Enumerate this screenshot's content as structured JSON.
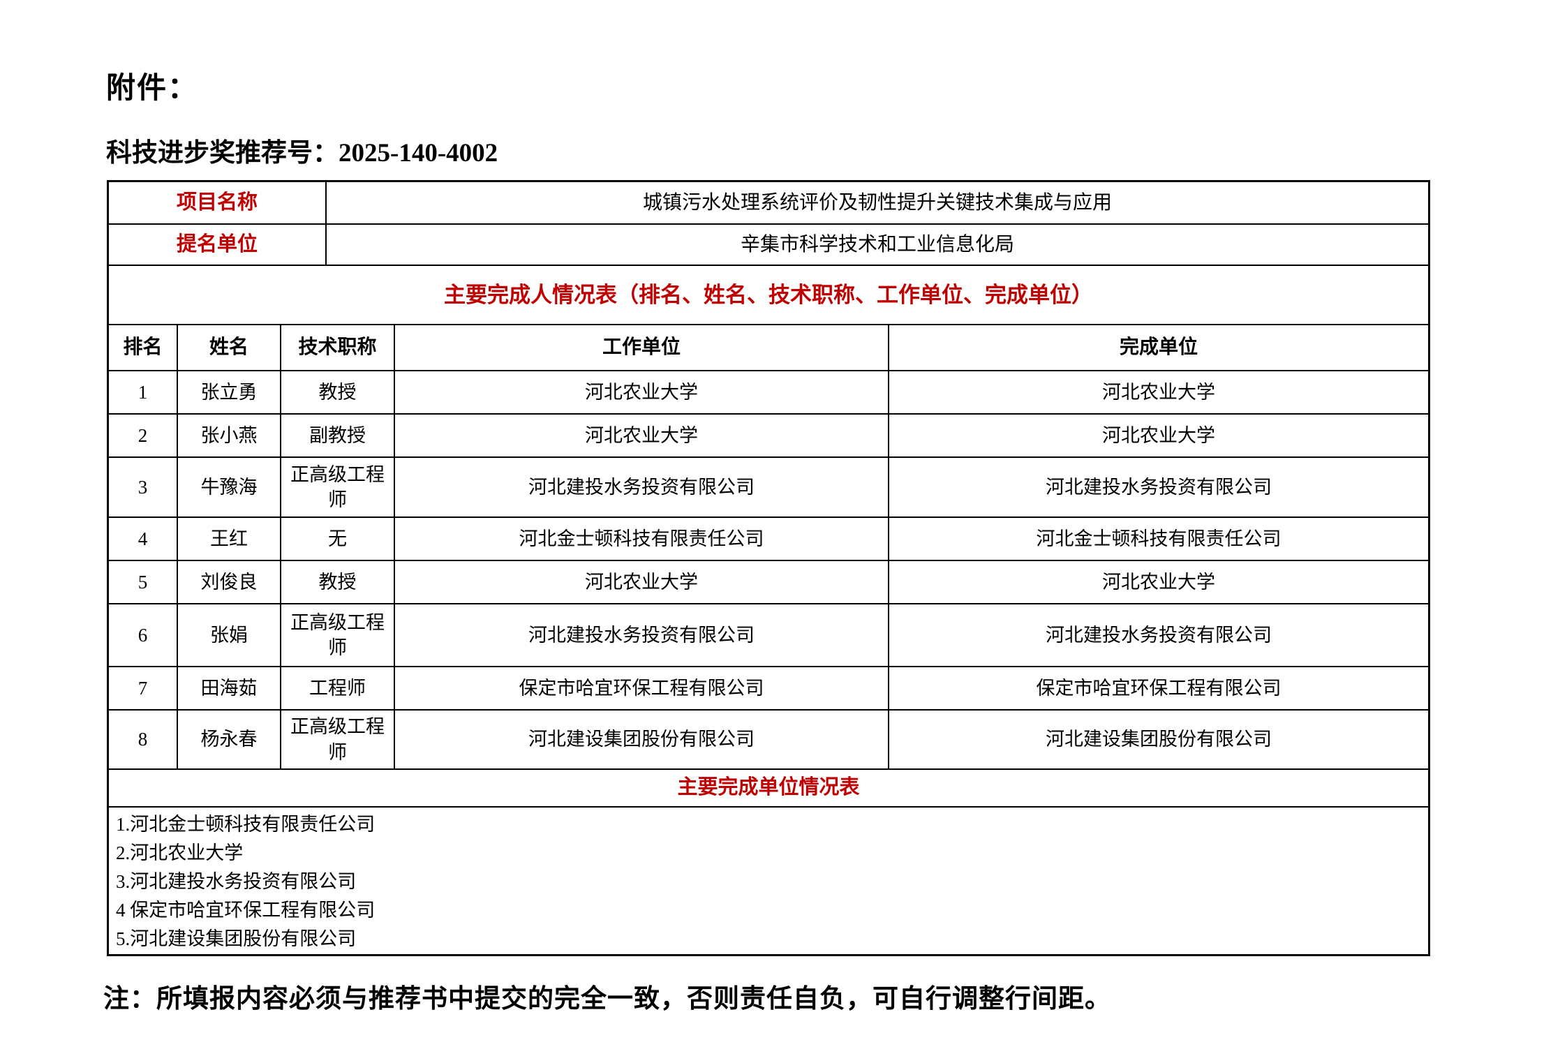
{
  "page": {
    "attachment_label": "附件：",
    "recommendation_label": "科技进步奖推荐号：",
    "recommendation_number": "2025-140-4002",
    "note": "注：所填报内容必须与推荐书中提交的完全一致，否则责任自负，可自行调整行间距。"
  },
  "info": {
    "project_name_label": "项目名称",
    "project_name_value": "城镇污水处理系统评价及韧性提升关键技术集成与应用",
    "nominator_label": "提名单位",
    "nominator_value": "辛集市科学技术和工业信息化局"
  },
  "completers_table": {
    "title": "主要完成人情况表（排名、姓名、技术职称、工作单位、完成单位）",
    "headers": {
      "rank": "排名",
      "name": "姓名",
      "title": "技术职称",
      "work_unit": "工作单位",
      "completion_unit": "完成单位"
    },
    "rows": [
      {
        "rank": "1",
        "name": "张立勇",
        "title": "教授",
        "work_unit": "河北农业大学",
        "completion_unit": "河北农业大学"
      },
      {
        "rank": "2",
        "name": "张小燕",
        "title": "副教授",
        "work_unit": "河北农业大学",
        "completion_unit": "河北农业大学"
      },
      {
        "rank": "3",
        "name": "牛豫海",
        "title": "正高级工程师",
        "work_unit": "河北建投水务投资有限公司",
        "completion_unit": "河北建投水务投资有限公司"
      },
      {
        "rank": "4",
        "name": "王红",
        "title": "无",
        "work_unit": "河北金士顿科技有限责任公司",
        "completion_unit": "河北金士顿科技有限责任公司"
      },
      {
        "rank": "5",
        "name": "刘俊良",
        "title": "教授",
        "work_unit": "河北农业大学",
        "completion_unit": "河北农业大学"
      },
      {
        "rank": "6",
        "name": "张娟",
        "title": "正高级工程师",
        "work_unit": "河北建投水务投资有限公司",
        "completion_unit": "河北建投水务投资有限公司"
      },
      {
        "rank": "7",
        "name": "田海茹",
        "title": "工程师",
        "work_unit": "保定市哈宜环保工程有限公司",
        "completion_unit": "保定市哈宜环保工程有限公司"
      },
      {
        "rank": "8",
        "name": "杨永春",
        "title": "正高级工程师",
        "work_unit": "河北建设集团股份有限公司",
        "completion_unit": "河北建设集团股份有限公司"
      }
    ]
  },
  "units_table": {
    "title": "主要完成单位情况表",
    "items": [
      "1.河北金士顿科技有限责任公司",
      "2.河北农业大学",
      "3.河北建投水务投资有限公司",
      "4 保定市哈宜环保工程有限公司",
      "5.河北建设集团股份有限公司"
    ]
  },
  "colors": {
    "accent_red": "#C00000",
    "border_black": "#000000",
    "background": "#FFFFFF"
  }
}
